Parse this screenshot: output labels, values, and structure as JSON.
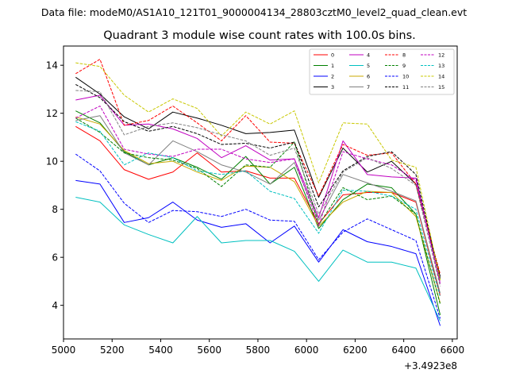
{
  "header": {
    "data_file": "Data file: modeM0/AS1A10_121T01_9000004134_28803cztM0_level2_quad_clean.evt"
  },
  "chart_data": {
    "type": "line",
    "title": "Quadrant 3 module wise count rates with 100.0s bins.",
    "xlabel": "",
    "ylabel": "",
    "x_offset_label": "+3.4923e8",
    "xlim": [
      5000,
      6620
    ],
    "ylim": [
      2.6,
      14.8
    ],
    "x_ticks": [
      5000,
      5200,
      5400,
      5600,
      5800,
      6000,
      6200,
      6400,
      6600
    ],
    "y_ticks": [
      4,
      6,
      8,
      10,
      12,
      14
    ],
    "grid": false,
    "legend_position": "top-right",
    "x": [
      5050,
      5150,
      5250,
      5350,
      5450,
      5550,
      5650,
      5750,
      5850,
      5950,
      6050,
      6150,
      6250,
      6350,
      6450,
      6550
    ],
    "series": [
      {
        "name": "0",
        "color": "#ff0000",
        "dash": "solid",
        "values": [
          11.45,
          10.85,
          9.65,
          9.25,
          9.55,
          10.35,
          9.55,
          9.6,
          9.3,
          9.3,
          7.4,
          8.6,
          8.7,
          8.7,
          8.3,
          4.4
        ]
      },
      {
        "name": "1",
        "color": "#008000",
        "dash": "solid",
        "values": [
          12.1,
          11.6,
          10.4,
          9.85,
          10.15,
          9.75,
          9.25,
          10.2,
          9.05,
          9.75,
          7.2,
          8.4,
          9.05,
          8.9,
          7.8,
          3.6
        ]
      },
      {
        "name": "2",
        "color": "#0000ff",
        "dash": "solid",
        "values": [
          9.2,
          9.05,
          7.45,
          7.65,
          8.3,
          7.55,
          7.25,
          7.4,
          6.6,
          7.3,
          5.8,
          7.15,
          6.65,
          6.45,
          6.15,
          3.15
        ]
      },
      {
        "name": "3",
        "color": "#000000",
        "dash": "solid",
        "values": [
          13.5,
          12.8,
          11.85,
          11.35,
          12.05,
          11.8,
          11.5,
          11.15,
          11.2,
          11.3,
          8.5,
          10.55,
          9.55,
          10.0,
          9.05,
          5.2
        ]
      },
      {
        "name": "4",
        "color": "#c000c0",
        "dash": "solid",
        "values": [
          12.55,
          12.75,
          11.5,
          11.55,
          11.35,
          10.95,
          10.15,
          10.65,
          10.05,
          10.1,
          7.65,
          10.85,
          9.45,
          9.35,
          9.3,
          4.9
        ]
      },
      {
        "name": "5",
        "color": "#00c0c0",
        "dash": "solid",
        "values": [
          8.5,
          8.3,
          7.35,
          6.95,
          6.6,
          7.7,
          6.6,
          6.7,
          6.7,
          6.25,
          5.0,
          6.3,
          5.8,
          5.8,
          5.55,
          3.35
        ]
      },
      {
        "name": "6",
        "color": "#c8a800",
        "dash": "solid",
        "values": [
          11.85,
          11.55,
          10.45,
          9.9,
          10.0,
          9.55,
          9.2,
          9.8,
          9.75,
          9.15,
          7.3,
          8.3,
          8.75,
          8.7,
          7.7,
          4.1
        ]
      },
      {
        "name": "7",
        "color": "#808080",
        "dash": "solid",
        "values": [
          11.7,
          11.9,
          10.35,
          9.85,
          10.85,
          10.4,
          9.85,
          9.55,
          9.05,
          9.95,
          7.55,
          9.45,
          9.1,
          8.75,
          8.35,
          4.5
        ]
      },
      {
        "name": "8",
        "color": "#ff0000",
        "dash": "dashed",
        "values": [
          13.65,
          14.25,
          11.5,
          11.7,
          12.3,
          11.6,
          10.85,
          11.9,
          10.8,
          10.75,
          8.55,
          10.7,
          10.25,
          10.35,
          9.05,
          5.3
        ]
      },
      {
        "name": "9",
        "color": "#008000",
        "dash": "dashed",
        "values": [
          11.8,
          11.2,
          10.35,
          10.15,
          10.05,
          9.7,
          8.95,
          9.85,
          9.75,
          10.8,
          7.35,
          8.9,
          8.4,
          8.55,
          7.8,
          4.05
        ]
      },
      {
        "name": "10",
        "color": "#0000ff",
        "dash": "dashed",
        "values": [
          10.3,
          9.6,
          8.25,
          7.45,
          7.95,
          7.9,
          7.7,
          8.0,
          7.55,
          7.5,
          5.9,
          7.05,
          7.6,
          7.15,
          6.7,
          3.45
        ]
      },
      {
        "name": "11",
        "color": "#000000",
        "dash": "dashed",
        "values": [
          13.2,
          12.65,
          11.65,
          11.25,
          11.45,
          11.15,
          10.7,
          10.75,
          10.55,
          10.8,
          8.1,
          9.6,
          10.2,
          10.4,
          9.45,
          5.1
        ]
      },
      {
        "name": "12",
        "color": "#c000c0",
        "dash": "dashed",
        "values": [
          11.8,
          12.3,
          10.5,
          10.3,
          10.2,
          10.5,
          10.5,
          10.1,
          9.95,
          10.1,
          7.3,
          10.4,
          10.1,
          9.85,
          9.2,
          4.95
        ]
      },
      {
        "name": "13",
        "color": "#00c0c0",
        "dash": "dashed",
        "values": [
          11.65,
          11.25,
          9.85,
          10.35,
          10.15,
          9.6,
          9.45,
          9.6,
          8.75,
          8.45,
          7.0,
          8.8,
          8.75,
          8.55,
          8.0,
          4.35
        ]
      },
      {
        "name": "14",
        "color": "#c8c800",
        "dash": "dashed",
        "values": [
          14.1,
          13.95,
          12.75,
          12.05,
          12.6,
          12.2,
          11.05,
          12.05,
          11.55,
          12.1,
          9.1,
          11.6,
          11.55,
          10.05,
          9.75,
          5.05
        ]
      },
      {
        "name": "15",
        "color": "#808080",
        "dash": "dashed",
        "values": [
          12.95,
          12.9,
          11.1,
          11.45,
          11.6,
          11.4,
          11.1,
          10.85,
          10.25,
          10.55,
          7.8,
          9.55,
          10.15,
          9.7,
          9.0,
          4.8
        ]
      }
    ]
  }
}
